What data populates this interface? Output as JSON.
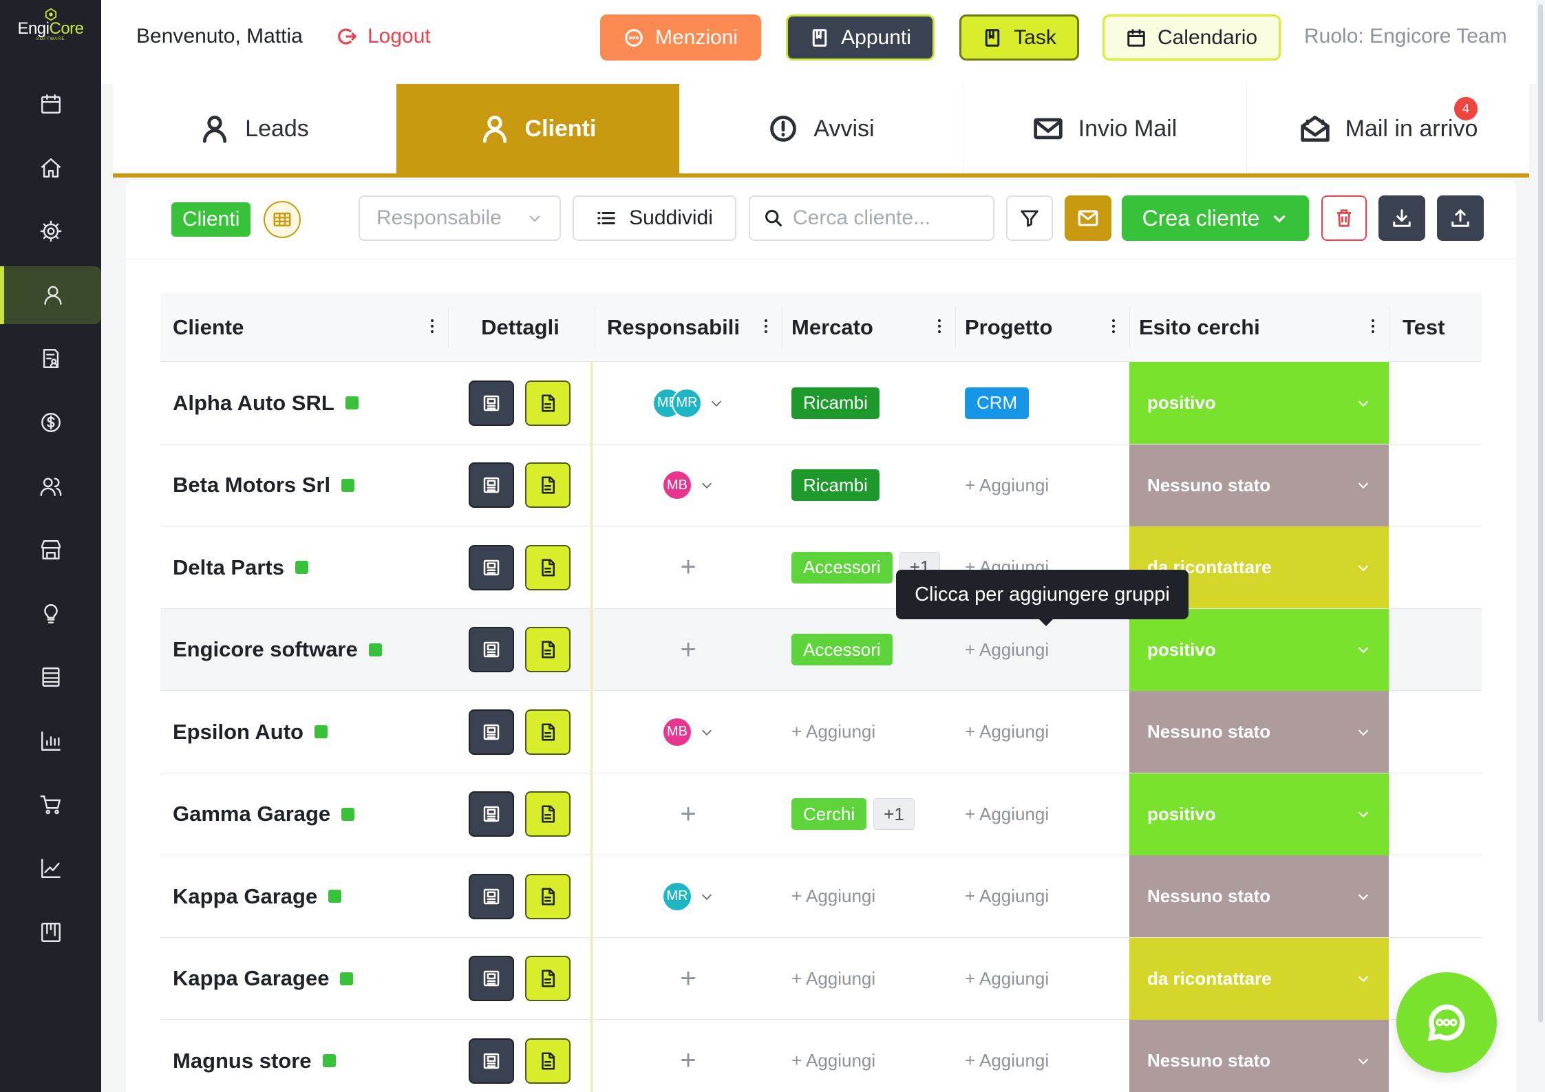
{
  "brand": {
    "name_a": "Engi",
    "name_b": "Core",
    "sub": "SOFTWARE"
  },
  "sidebar": {
    "items": [
      {
        "icon": "calendar-icon"
      },
      {
        "icon": "home-icon"
      },
      {
        "icon": "gear-icon"
      },
      {
        "icon": "user-icon",
        "active": true
      },
      {
        "icon": "document-user-icon"
      },
      {
        "icon": "dollar-icon"
      },
      {
        "icon": "users-icon"
      },
      {
        "icon": "store-icon"
      },
      {
        "icon": "lightbulb-icon"
      },
      {
        "icon": "list-icon"
      },
      {
        "icon": "bar-chart-icon"
      },
      {
        "icon": "cart-icon"
      },
      {
        "icon": "line-chart-icon"
      },
      {
        "icon": "kanban-icon"
      }
    ]
  },
  "header": {
    "welcome": "Benvenuto, Mattia",
    "logout": "Logout",
    "menzioni": "Menzioni",
    "appunti": "Appunti",
    "task": "Task",
    "calendario": "Calendario",
    "ruolo": "Ruolo: Engicore Team"
  },
  "tabs": [
    {
      "label": "Leads"
    },
    {
      "label": "Clienti",
      "active": true
    },
    {
      "label": "Avvisi"
    },
    {
      "label": "Invio Mail"
    },
    {
      "label": "Mail in arrivo",
      "badge": "4"
    }
  ],
  "toolbar": {
    "view_label": "Clienti",
    "responsabile": "Responsabile",
    "suddividi": "Suddividi",
    "search_placeholder": "Cerca cliente...",
    "crea": "Crea cliente"
  },
  "table": {
    "columns": [
      "Cliente",
      "Dettagli",
      "Responsabili",
      "Mercato",
      "Progetto",
      "Esito cerchi",
      "Test"
    ],
    "add_label": "+ Aggiungi",
    "rows": [
      {
        "name": "Alpha Auto SRL",
        "resp": [
          "ME",
          "MR"
        ],
        "mercato": [
          {
            "t": "Ricambi",
            "k": "dark"
          }
        ],
        "progetto": [
          {
            "t": "CRM"
          }
        ],
        "esito": "positivo",
        "ek": "pos"
      },
      {
        "name": "Beta Motors Srl",
        "resp": [
          "MB"
        ],
        "mercato": [
          {
            "t": "Ricambi",
            "k": "dark"
          }
        ],
        "progetto": [],
        "esito": "Nessuno stato",
        "ek": "none"
      },
      {
        "name": "Delta Parts",
        "resp": [],
        "mercato": [
          {
            "t": "Accessori",
            "k": "light"
          },
          {
            "t": "+1",
            "k": "more"
          }
        ],
        "progetto": [],
        "esito": "da ricontattare",
        "ek": "rec"
      },
      {
        "name": "Engicore software",
        "resp": [],
        "mercato": [
          {
            "t": "Accessori",
            "k": "light"
          }
        ],
        "progetto": [],
        "esito": "positivo",
        "ek": "pos"
      },
      {
        "name": "Epsilon Auto",
        "resp": [
          "MB"
        ],
        "mercato": [],
        "progetto": [],
        "esito": "Nessuno stato",
        "ek": "none"
      },
      {
        "name": "Gamma Garage",
        "resp": [],
        "mercato": [
          {
            "t": "Cerchi",
            "k": "light"
          },
          {
            "t": "+1",
            "k": "more"
          }
        ],
        "progetto": [],
        "esito": "positivo",
        "ek": "pos"
      },
      {
        "name": "Kappa Garage",
        "resp": [
          "MR"
        ],
        "mercato": [],
        "progetto": [],
        "esito": "Nessuno stato",
        "ek": "none"
      },
      {
        "name": "Kappa Garagee",
        "resp": [],
        "mercato": [],
        "progetto": [],
        "esito": "da ricontattare",
        "ek": "rec"
      },
      {
        "name": "Magnus store",
        "resp": [],
        "mercato": [],
        "progetto": [],
        "esito": "Nessuno stato",
        "ek": "none"
      }
    ]
  },
  "tooltip": "Clicca per aggiungere gruppi"
}
